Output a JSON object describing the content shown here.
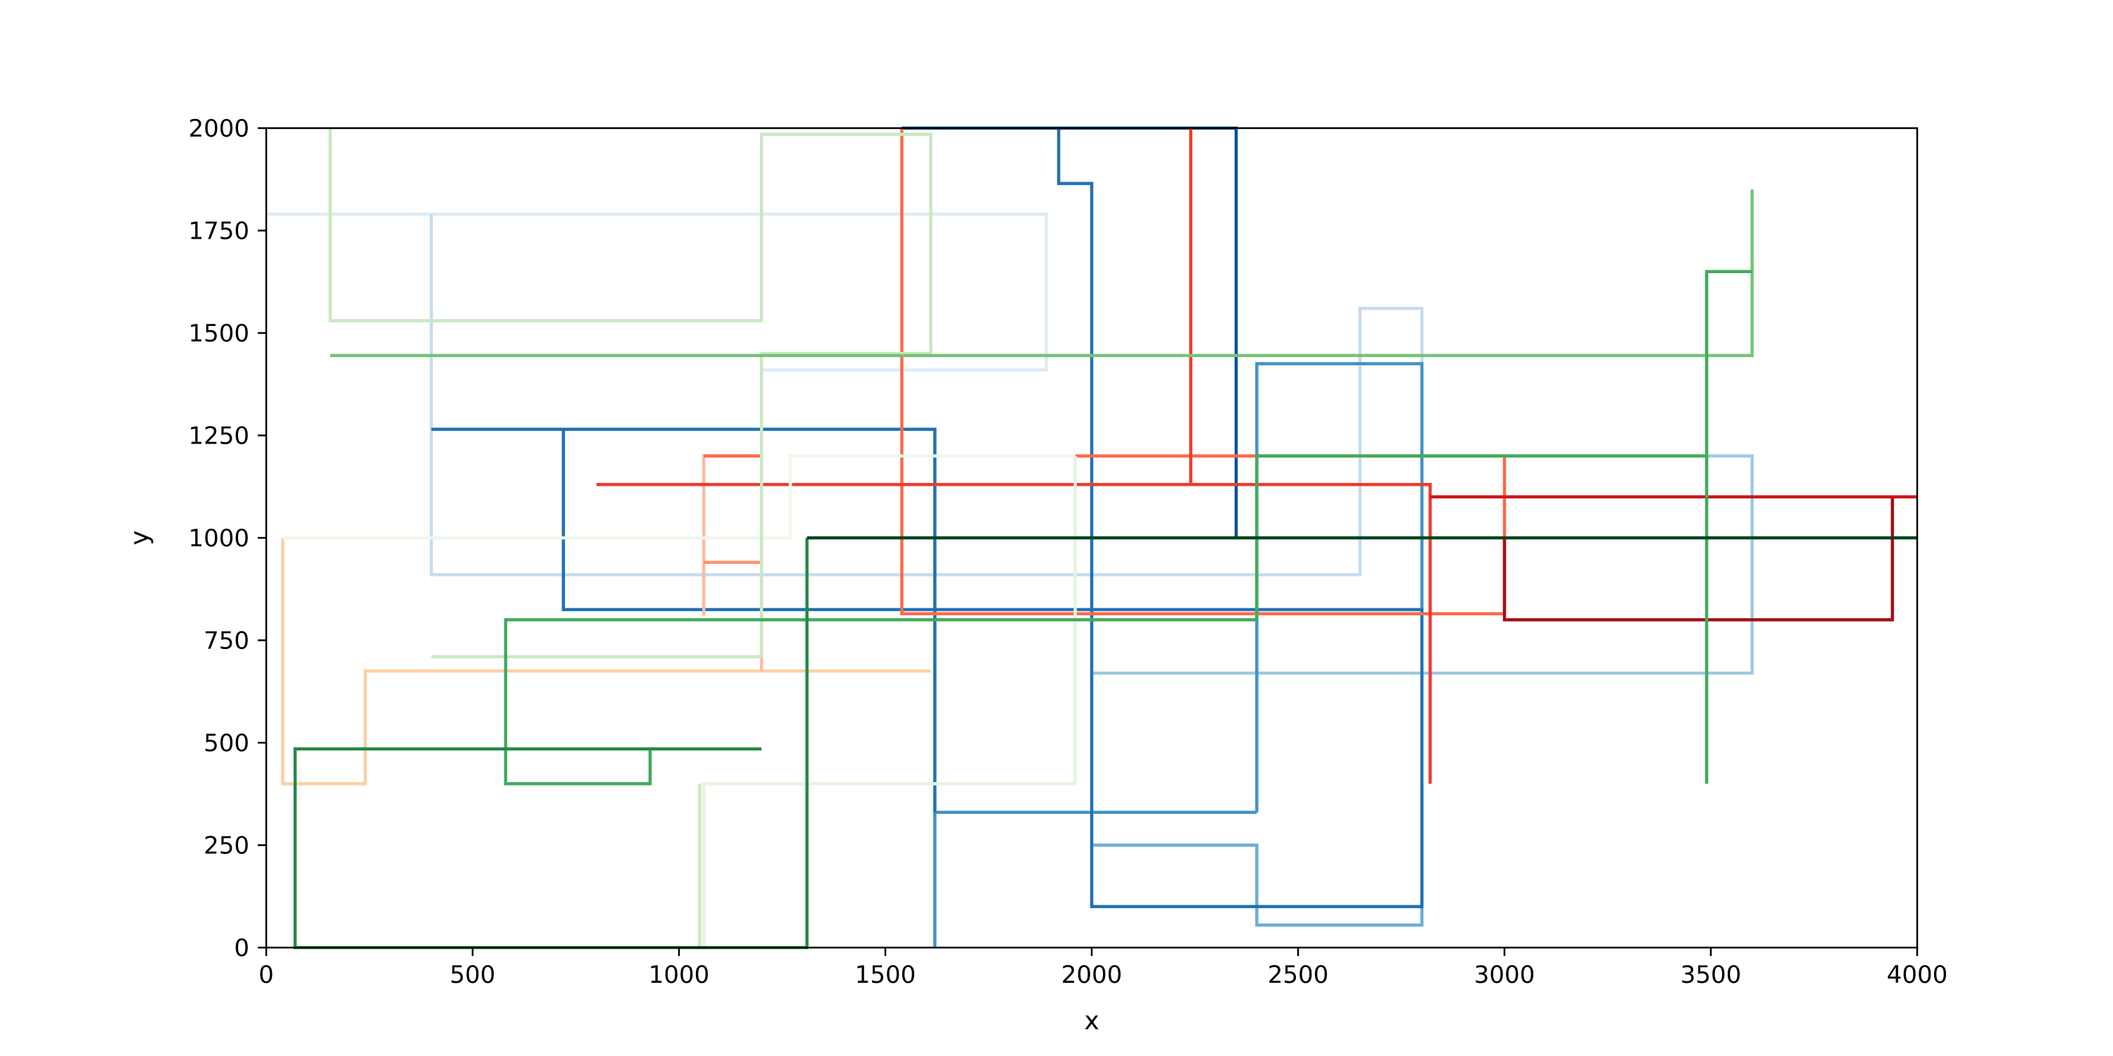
{
  "chart_data": {
    "type": "line",
    "title": "",
    "xlabel": "x",
    "ylabel": "y",
    "xlim": [
      0,
      4000
    ],
    "ylim": [
      0,
      2000
    ],
    "xticks": [
      0,
      500,
      1000,
      1500,
      2000,
      2500,
      3000,
      3500,
      4000
    ],
    "yticks": [
      0,
      250,
      500,
      750,
      1000,
      1250,
      1500,
      1750,
      2000
    ],
    "grid": false,
    "legend": "none",
    "series": [
      {
        "color": "#deebf7",
        "points": [
          [
            0,
            1790
          ],
          [
            1890,
            1790
          ],
          [
            1890,
            1410
          ],
          [
            1200,
            1410
          ]
        ]
      },
      {
        "color": "#c6dbef",
        "points": [
          [
            400,
            1790
          ],
          [
            400,
            910
          ],
          [
            2650,
            910
          ],
          [
            2650,
            1560
          ],
          [
            2800,
            1560
          ],
          [
            2800,
            1200
          ]
        ]
      },
      {
        "color": "#9ecae1",
        "points": [
          [
            2800,
            1200
          ],
          [
            3600,
            1200
          ],
          [
            3600,
            670
          ],
          [
            2000,
            670
          ]
        ]
      },
      {
        "color": "#6baed6",
        "points": [
          [
            2000,
            250
          ],
          [
            2400,
            250
          ],
          [
            2400,
            55
          ],
          [
            2800,
            55
          ],
          [
            2800,
            400
          ]
        ]
      },
      {
        "color": "#4292c6",
        "points": [
          [
            2400,
            330
          ],
          [
            1620,
            330
          ],
          [
            1620,
            0
          ]
        ]
      },
      {
        "color": "#4292c6",
        "points": [
          [
            2400,
            330
          ],
          [
            2400,
            1425
          ],
          [
            2800,
            1425
          ],
          [
            2800,
            820
          ]
        ]
      },
      {
        "color": "#2171b5",
        "points": [
          [
            400,
            1265
          ],
          [
            1620,
            1265
          ],
          [
            1620,
            330
          ]
        ]
      },
      {
        "color": "#2171b5",
        "points": [
          [
            720,
            1265
          ],
          [
            720,
            825
          ],
          [
            2800,
            825
          ],
          [
            2800,
            100
          ],
          [
            2000,
            100
          ],
          [
            2000,
            1865
          ],
          [
            1920,
            1865
          ],
          [
            1920,
            2000
          ]
        ]
      },
      {
        "color": "#08519c",
        "points": [
          [
            1540,
            2000
          ],
          [
            2350,
            2000
          ],
          [
            2350,
            1000
          ]
        ]
      },
      {
        "color": "#fdd0a2",
        "points": [
          [
            40,
            1000
          ],
          [
            40,
            400
          ],
          [
            240,
            400
          ],
          [
            240,
            675
          ],
          [
            1610,
            675
          ]
        ]
      },
      {
        "color": "#fcbba1",
        "points": [
          [
            1200,
            675
          ],
          [
            1200,
            1200
          ],
          [
            1060,
            1200
          ],
          [
            1060,
            810
          ]
        ]
      },
      {
        "color": "#fc9272",
        "points": [
          [
            1060,
            940
          ],
          [
            1200,
            940
          ]
        ]
      },
      {
        "color": "#fb6a4a",
        "points": [
          [
            1060,
            1200
          ],
          [
            1200,
            1200
          ]
        ]
      },
      {
        "color": "#fb6a4a",
        "points": [
          [
            1540,
            2000
          ],
          [
            1540,
            815
          ],
          [
            3000,
            815
          ],
          [
            3000,
            1200
          ],
          [
            1960,
            1200
          ]
        ]
      },
      {
        "color": "#ef3b2c",
        "points": [
          [
            2240,
            2000
          ],
          [
            2240,
            1130
          ]
        ]
      },
      {
        "color": "#ef3b2c",
        "points": [
          [
            800,
            1130
          ],
          [
            2820,
            1130
          ],
          [
            2820,
            400
          ]
        ]
      },
      {
        "color": "#cb181d",
        "points": [
          [
            4000,
            1100
          ],
          [
            2820,
            1100
          ]
        ]
      },
      {
        "color": "#a50f15",
        "points": [
          [
            3000,
            1000
          ],
          [
            3000,
            800
          ],
          [
            3940,
            800
          ],
          [
            3940,
            1100
          ]
        ]
      },
      {
        "color": "#edf8e9",
        "points": [
          [
            40,
            1000
          ],
          [
            1270,
            1000
          ],
          [
            1270,
            1200
          ],
          [
            1960,
            1200
          ]
        ]
      },
      {
        "color": "#e5f5e0",
        "points": [
          [
            1960,
            1200
          ],
          [
            1960,
            400
          ],
          [
            1060,
            400
          ],
          [
            1060,
            0
          ]
        ]
      },
      {
        "color": "#c7e9c0",
        "points": [
          [
            1050,
            0
          ],
          [
            1050,
            400
          ]
        ]
      },
      {
        "color": "#c7e9c0",
        "points": [
          [
            400,
            710
          ],
          [
            1200,
            710
          ]
        ]
      },
      {
        "color": "#c7e9c0",
        "points": [
          [
            1200,
            710
          ],
          [
            1200,
            1450
          ],
          [
            1610,
            1450
          ],
          [
            1610,
            1985
          ],
          [
            1200,
            1985
          ],
          [
            1200,
            1530
          ],
          [
            155,
            1530
          ],
          [
            155,
            2000
          ]
        ]
      },
      {
        "color": "#74c476",
        "points": [
          [
            155,
            1445
          ],
          [
            3600,
            1445
          ],
          [
            3600,
            1850
          ]
        ]
      },
      {
        "color": "#41ab5d",
        "points": [
          [
            3600,
            1650
          ],
          [
            3490,
            1650
          ],
          [
            3490,
            400
          ]
        ]
      },
      {
        "color": "#41ab5d",
        "points": [
          [
            3490,
            1200
          ],
          [
            2400,
            1200
          ],
          [
            2400,
            800
          ],
          [
            580,
            800
          ],
          [
            580,
            400
          ],
          [
            930,
            400
          ],
          [
            930,
            485
          ]
        ]
      },
      {
        "color": "#238b45",
        "points": [
          [
            1200,
            485
          ],
          [
            70,
            485
          ],
          [
            70,
            0
          ],
          [
            1310,
            0
          ],
          [
            1310,
            1000
          ]
        ]
      },
      {
        "color": "#00441b",
        "points": [
          [
            1310,
            1000
          ],
          [
            4000,
            1000
          ]
        ]
      }
    ]
  }
}
